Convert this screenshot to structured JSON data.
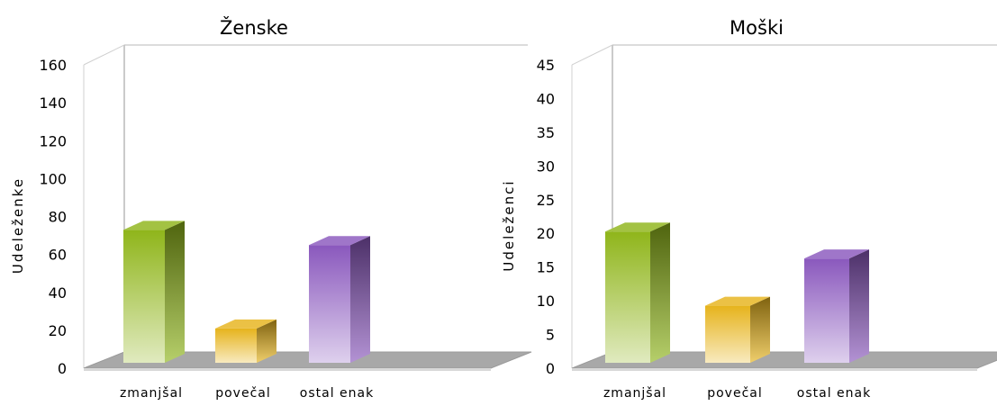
{
  "chart_data": [
    {
      "type": "bar",
      "title": "Ženske",
      "ylabel": "Udeleženke",
      "xlabel": "",
      "categories": [
        "zmanjšal",
        "povečal",
        "ostal enak"
      ],
      "values": [
        72,
        20,
        64
      ],
      "ylim": [
        0,
        160
      ],
      "yticks": [
        0,
        20,
        40,
        60,
        80,
        100,
        120,
        140,
        160
      ],
      "colors": [
        "#8fb51a",
        "#e6b31c",
        "#8a58bd"
      ],
      "grid": false,
      "legend": "none"
    },
    {
      "type": "bar",
      "title": "Moški",
      "ylabel": "Udeleženci",
      "xlabel": "",
      "categories": [
        "zmanjšal",
        "povečal",
        "ostal enak"
      ],
      "values": [
        20,
        9,
        16
      ],
      "ylim": [
        0,
        45
      ],
      "yticks": [
        0,
        5,
        10,
        15,
        20,
        25,
        30,
        35,
        40,
        45
      ],
      "colors": [
        "#8fb51a",
        "#e6b31c",
        "#8a58bd"
      ],
      "grid": false,
      "legend": "none"
    }
  ]
}
